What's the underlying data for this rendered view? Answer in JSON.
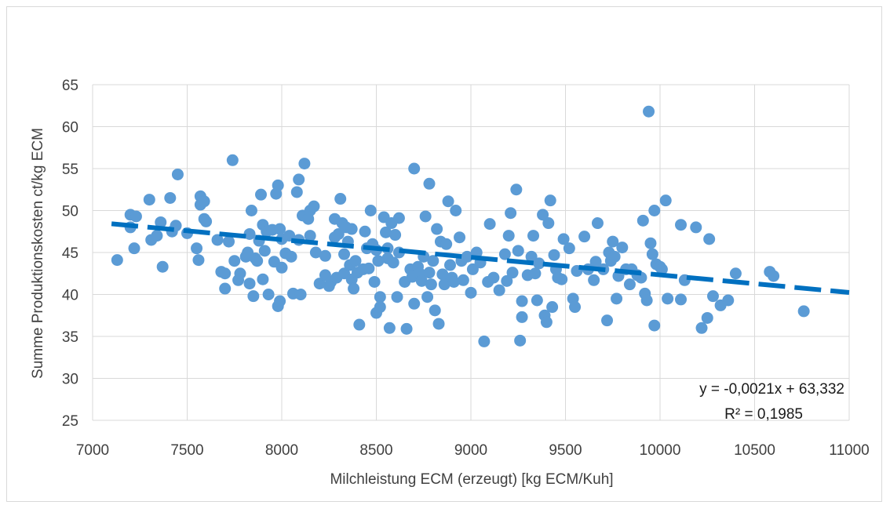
{
  "chart_data": {
    "type": "scatter",
    "xlabel": "Milchleistung ECM (erzeugt)  [kg ECM/Kuh]",
    "ylabel": "Summe Produktionskosten ct/kg ECM",
    "xlim": [
      7000,
      11000
    ],
    "ylim": [
      25,
      65
    ],
    "xticks": [
      "7000",
      "7500",
      "8000",
      "8500",
      "9000",
      "9500",
      "10000",
      "10500",
      "11000"
    ],
    "yticks": [
      "25",
      "30",
      "35",
      "40",
      "45",
      "50",
      "55",
      "60",
      "65"
    ],
    "grid": true,
    "colors": {
      "points": "#5b9bd5",
      "trendline": "#0070c0",
      "grid": "#d9d9d9"
    },
    "trendline": {
      "slope": -0.0021,
      "intercept": 63.332,
      "x_range": [
        7100,
        11000
      ],
      "style": "dashed"
    },
    "equation_label": "y = -0,0021x + 63,332",
    "r2_label": "R² = 0,1985",
    "points": [
      [
        7130,
        44.1
      ],
      [
        7200,
        48.0
      ],
      [
        7200,
        49.5
      ],
      [
        7230,
        49.3
      ],
      [
        7220,
        45.5
      ],
      [
        7300,
        51.3
      ],
      [
        7310,
        46.5
      ],
      [
        7340,
        47.0
      ],
      [
        7360,
        48.6
      ],
      [
        7370,
        43.3
      ],
      [
        7410,
        51.5
      ],
      [
        7420,
        47.5
      ],
      [
        7440,
        48.2
      ],
      [
        7450,
        54.3
      ],
      [
        7500,
        47.3
      ],
      [
        7550,
        45.5
      ],
      [
        7560,
        44.1
      ],
      [
        7570,
        51.7
      ],
      [
        7570,
        50.7
      ],
      [
        7590,
        49.0
      ],
      [
        7590,
        51.1
      ],
      [
        7600,
        48.7
      ],
      [
        7660,
        46.5
      ],
      [
        7680,
        42.7
      ],
      [
        7700,
        40.7
      ],
      [
        7700,
        42.5
      ],
      [
        7720,
        46.3
      ],
      [
        7740,
        56.0
      ],
      [
        7750,
        44.0
      ],
      [
        7770,
        41.7
      ],
      [
        7780,
        42.5
      ],
      [
        7810,
        44.5
      ],
      [
        7820,
        45.0
      ],
      [
        7830,
        47.2
      ],
      [
        7830,
        41.3
      ],
      [
        7840,
        50.0
      ],
      [
        7850,
        39.8
      ],
      [
        7860,
        44.3
      ],
      [
        7870,
        44.0
      ],
      [
        7880,
        46.4
      ],
      [
        7890,
        51.9
      ],
      [
        7900,
        48.3
      ],
      [
        7900,
        41.8
      ],
      [
        7910,
        45.2
      ],
      [
        7920,
        47.5
      ],
      [
        7930,
        40.0
      ],
      [
        7950,
        47.7
      ],
      [
        7960,
        43.9
      ],
      [
        7970,
        52.0
      ],
      [
        7980,
        53.0
      ],
      [
        7980,
        38.6
      ],
      [
        7990,
        47.8
      ],
      [
        7990,
        39.2
      ],
      [
        8000,
        43.2
      ],
      [
        8000,
        46.6
      ],
      [
        8020,
        44.9
      ],
      [
        8040,
        47.0
      ],
      [
        8050,
        44.5
      ],
      [
        8060,
        40.1
      ],
      [
        8080,
        52.2
      ],
      [
        8090,
        53.7
      ],
      [
        8090,
        46.5
      ],
      [
        8100,
        40.0
      ],
      [
        8110,
        49.4
      ],
      [
        8120,
        55.6
      ],
      [
        8140,
        49.0
      ],
      [
        8150,
        47.0
      ],
      [
        8150,
        50.0
      ],
      [
        8170,
        50.5
      ],
      [
        8180,
        45.0
      ],
      [
        8200,
        41.3
      ],
      [
        8230,
        44.6
      ],
      [
        8230,
        42.3
      ],
      [
        8250,
        41.0
      ],
      [
        8260,
        41.5
      ],
      [
        8280,
        49.0
      ],
      [
        8280,
        46.8
      ],
      [
        8290,
        42.0
      ],
      [
        8300,
        47.2
      ],
      [
        8310,
        51.4
      ],
      [
        8320,
        48.5
      ],
      [
        8330,
        44.8
      ],
      [
        8330,
        42.5
      ],
      [
        8340,
        48.0
      ],
      [
        8350,
        46.3
      ],
      [
        8360,
        43.5
      ],
      [
        8370,
        47.8
      ],
      [
        8370,
        41.8
      ],
      [
        8380,
        40.7
      ],
      [
        8390,
        44.0
      ],
      [
        8400,
        42.6
      ],
      [
        8410,
        36.4
      ],
      [
        8430,
        43.0
      ],
      [
        8440,
        47.5
      ],
      [
        8450,
        45.5
      ],
      [
        8460,
        43.1
      ],
      [
        8470,
        50.0
      ],
      [
        8480,
        46.0
      ],
      [
        8490,
        41.5
      ],
      [
        8500,
        45.3
      ],
      [
        8500,
        37.8
      ],
      [
        8510,
        44.0
      ],
      [
        8520,
        39.7
      ],
      [
        8520,
        38.5
      ],
      [
        8540,
        49.2
      ],
      [
        8550,
        47.4
      ],
      [
        8560,
        45.5
      ],
      [
        8560,
        44.3
      ],
      [
        8570,
        36.0
      ],
      [
        8580,
        48.5
      ],
      [
        8590,
        43.8
      ],
      [
        8600,
        47.1
      ],
      [
        8610,
        39.7
      ],
      [
        8620,
        49.1
      ],
      [
        8620,
        45.0
      ],
      [
        8650,
        41.5
      ],
      [
        8660,
        35.9
      ],
      [
        8680,
        43.0
      ],
      [
        8690,
        42.1
      ],
      [
        8700,
        55.0
      ],
      [
        8700,
        38.9
      ],
      [
        8720,
        43.3
      ],
      [
        8730,
        42.5
      ],
      [
        8740,
        41.6
      ],
      [
        8750,
        44.5
      ],
      [
        8760,
        49.3
      ],
      [
        8770,
        39.7
      ],
      [
        8780,
        53.2
      ],
      [
        8780,
        42.6
      ],
      [
        8790,
        41.2
      ],
      [
        8800,
        44.0
      ],
      [
        8810,
        38.1
      ],
      [
        8820,
        47.8
      ],
      [
        8830,
        36.5
      ],
      [
        8840,
        46.3
      ],
      [
        8850,
        42.4
      ],
      [
        8860,
        41.2
      ],
      [
        8870,
        46.0
      ],
      [
        8880,
        51.1
      ],
      [
        8890,
        43.5
      ],
      [
        8900,
        42.0
      ],
      [
        8910,
        41.5
      ],
      [
        8920,
        50.0
      ],
      [
        8940,
        46.8
      ],
      [
        8950,
        44.0
      ],
      [
        8960,
        41.7
      ],
      [
        8980,
        44.5
      ],
      [
        9000,
        40.2
      ],
      [
        9010,
        43.0
      ],
      [
        9030,
        45.0
      ],
      [
        9050,
        43.8
      ],
      [
        9070,
        34.4
      ],
      [
        9090,
        41.5
      ],
      [
        9100,
        48.4
      ],
      [
        9120,
        42.0
      ],
      [
        9150,
        40.5
      ],
      [
        9180,
        44.8
      ],
      [
        9190,
        41.6
      ],
      [
        9200,
        47.0
      ],
      [
        9210,
        49.7
      ],
      [
        9220,
        42.6
      ],
      [
        9240,
        52.5
      ],
      [
        9250,
        45.2
      ],
      [
        9260,
        34.5
      ],
      [
        9270,
        37.3
      ],
      [
        9270,
        39.2
      ],
      [
        9300,
        42.3
      ],
      [
        9320,
        44.5
      ],
      [
        9330,
        47.0
      ],
      [
        9340,
        42.5
      ],
      [
        9350,
        39.3
      ],
      [
        9360,
        43.7
      ],
      [
        9380,
        49.5
      ],
      [
        9390,
        37.5
      ],
      [
        9400,
        36.7
      ],
      [
        9410,
        48.5
      ],
      [
        9420,
        51.2
      ],
      [
        9430,
        38.5
      ],
      [
        9440,
        44.7
      ],
      [
        9450,
        43.0
      ],
      [
        9460,
        42.0
      ],
      [
        9480,
        41.8
      ],
      [
        9490,
        46.6
      ],
      [
        9520,
        45.5
      ],
      [
        9540,
        39.5
      ],
      [
        9550,
        38.5
      ],
      [
        9560,
        42.8
      ],
      [
        9600,
        46.9
      ],
      [
        9620,
        43.0
      ],
      [
        9650,
        41.7
      ],
      [
        9660,
        43.9
      ],
      [
        9670,
        48.5
      ],
      [
        9700,
        43.0
      ],
      [
        9720,
        36.9
      ],
      [
        9730,
        45.0
      ],
      [
        9740,
        44.0
      ],
      [
        9750,
        46.3
      ],
      [
        9760,
        44.5
      ],
      [
        9770,
        39.5
      ],
      [
        9780,
        42.2
      ],
      [
        9800,
        45.6
      ],
      [
        9820,
        43.0
      ],
      [
        9840,
        41.2
      ],
      [
        9850,
        43.0
      ],
      [
        9880,
        42.3
      ],
      [
        9900,
        42.0
      ],
      [
        9910,
        48.8
      ],
      [
        9920,
        40.1
      ],
      [
        9930,
        39.3
      ],
      [
        9940,
        61.8
      ],
      [
        9950,
        46.1
      ],
      [
        9960,
        44.8
      ],
      [
        9970,
        36.3
      ],
      [
        9970,
        50.0
      ],
      [
        9980,
        43.6
      ],
      [
        10000,
        43.3
      ],
      [
        10010,
        43.0
      ],
      [
        10030,
        51.2
      ],
      [
        10040,
        39.5
      ],
      [
        10110,
        39.4
      ],
      [
        10110,
        48.3
      ],
      [
        10130,
        41.7
      ],
      [
        10190,
        48.0
      ],
      [
        10220,
        36.0
      ],
      [
        10250,
        37.2
      ],
      [
        10260,
        46.6
      ],
      [
        10280,
        39.8
      ],
      [
        10320,
        38.7
      ],
      [
        10360,
        39.3
      ],
      [
        10400,
        42.5
      ],
      [
        10580,
        42.7
      ],
      [
        10600,
        42.2
      ],
      [
        10760,
        38.0
      ]
    ]
  }
}
